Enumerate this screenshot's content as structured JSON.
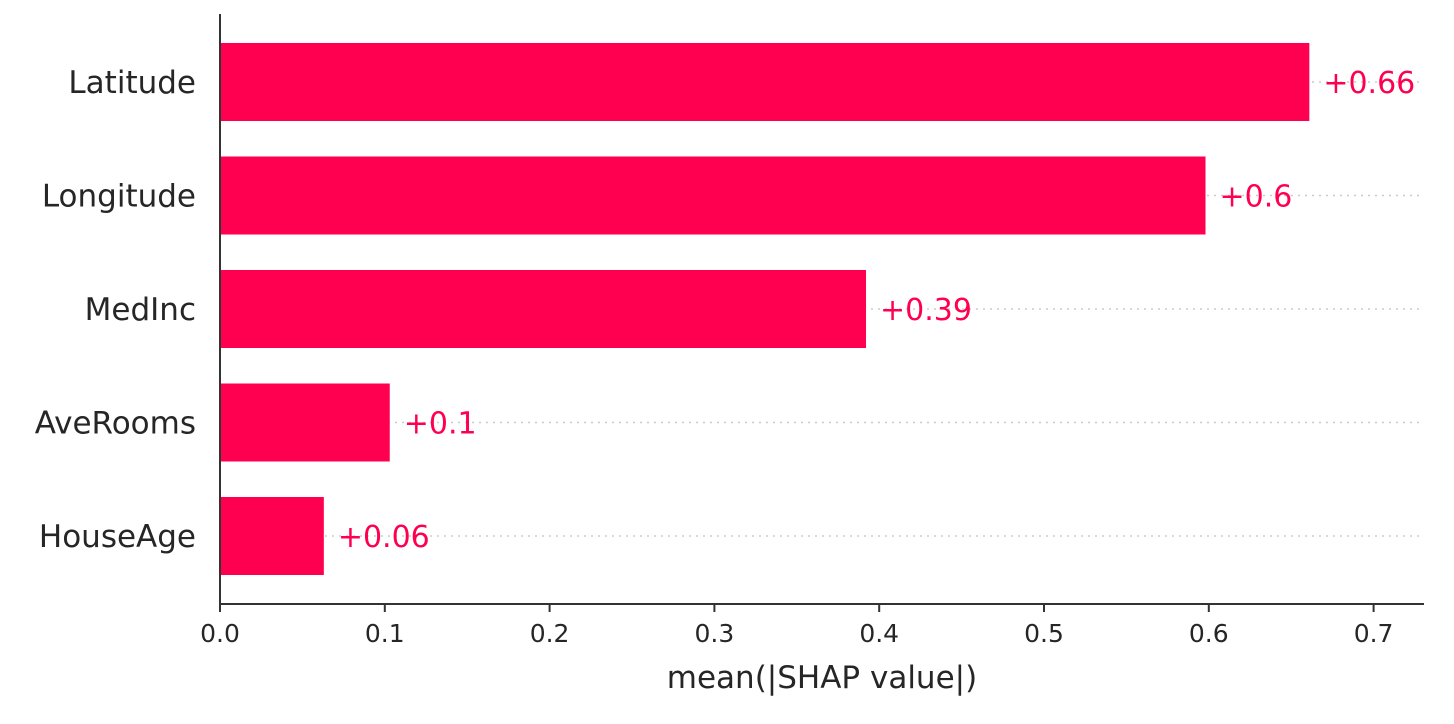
{
  "chart_data": {
    "type": "bar",
    "orientation": "horizontal",
    "categories": [
      "Latitude",
      "Longitude",
      "MedInc",
      "AveRooms",
      "HouseAge"
    ],
    "values": [
      0.661,
      0.598,
      0.392,
      0.103,
      0.063
    ],
    "value_labels": [
      "+0.66",
      "+0.6",
      "+0.39",
      "+0.1",
      "+0.06"
    ],
    "xlabel": "mean(|SHAP value|)",
    "ylabel": "",
    "xlim": [
      0,
      0.73
    ],
    "xticks": [
      0.0,
      0.1,
      0.2,
      0.3,
      0.4,
      0.5,
      0.6,
      0.7
    ],
    "xtick_labels": [
      "0.0",
      "0.1",
      "0.2",
      "0.3",
      "0.4",
      "0.5",
      "0.6",
      "0.7"
    ],
    "grid": "dotted horizontal lines behind bars",
    "legend": "none",
    "colors": {
      "bar": "#ff0051",
      "value_label": "#ff0051",
      "axis": "#333333",
      "grid": "#cccccc"
    }
  }
}
